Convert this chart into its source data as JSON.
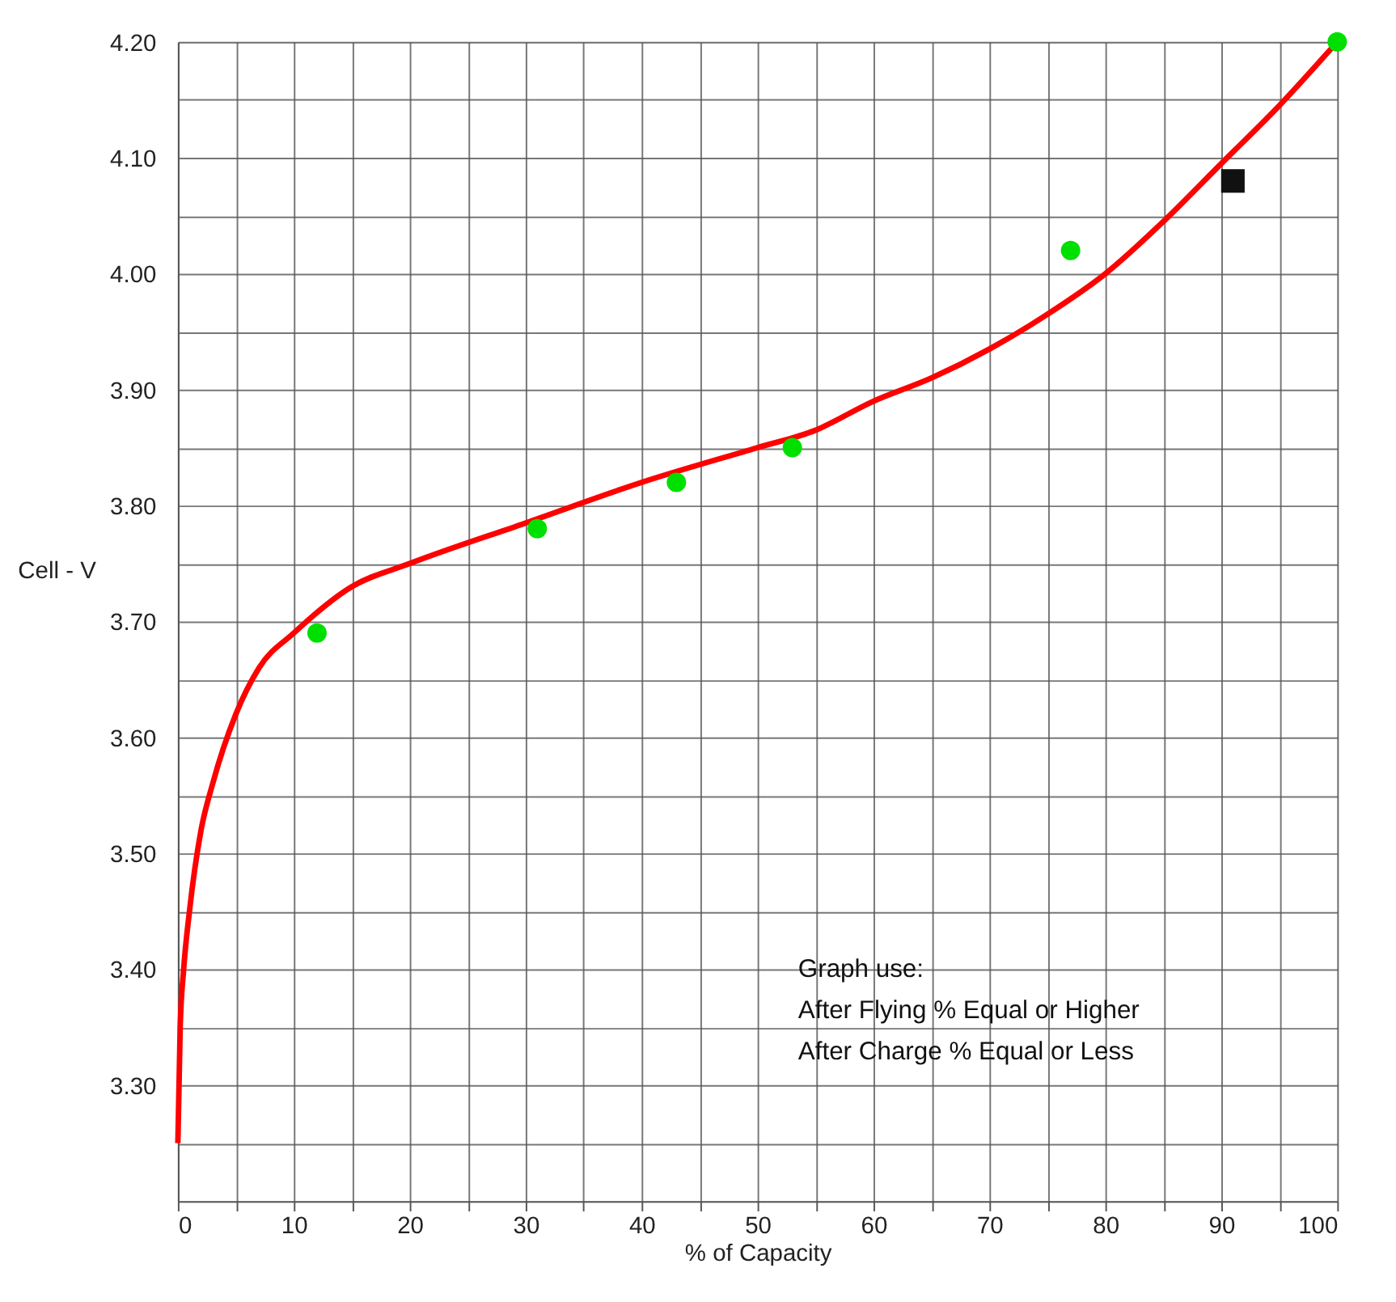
{
  "chart_data": {
    "type": "line",
    "xlabel": "% of Capacity",
    "ylabel": "Cell - V",
    "annotations": [
      "Graph use:",
      "After Flying     %  Equal or Higher",
      "After Charge    %  Equal or Less"
    ],
    "series": [
      {
        "type": "line",
        "color": "#ff0000",
        "marker": "none",
        "x": [
          0,
          0.2,
          0.5,
          1,
          2,
          3,
          5,
          7,
          10,
          15,
          20,
          30,
          40,
          50,
          55,
          60,
          65,
          70,
          75,
          80,
          85,
          90,
          95,
          100
        ],
        "values": [
          3.25,
          3.35,
          3.4,
          3.45,
          3.52,
          3.56,
          3.62,
          3.66,
          3.69,
          3.73,
          3.75,
          3.785,
          3.82,
          3.85,
          3.865,
          3.89,
          3.91,
          3.935,
          3.965,
          4.0,
          4.045,
          4.095,
          4.145,
          4.2
        ]
      },
      {
        "type": "scatter",
        "color": "#00e000",
        "marker": "circle",
        "x": [
          12,
          31,
          43,
          53,
          77,
          100
        ],
        "values": [
          3.69,
          3.78,
          3.82,
          3.85,
          4.02,
          4.2
        ]
      },
      {
        "type": "scatter",
        "color": "#111111",
        "marker": "square",
        "x": [
          91
        ],
        "values": [
          4.08
        ]
      }
    ],
    "xlim": [
      0,
      100
    ],
    "xticks": [
      0,
      {
        "value": 5,
        "label": null
      },
      10,
      {
        "value": 15,
        "label": null
      },
      20,
      {
        "value": 25,
        "label": null
      },
      30,
      {
        "value": 35,
        "label": null
      },
      40,
      {
        "value": 45,
        "label": null
      },
      50,
      {
        "value": 55,
        "label": null
      },
      60,
      {
        "value": 65,
        "label": null
      },
      70,
      {
        "value": 75,
        "label": null
      },
      80,
      {
        "value": 85,
        "label": null
      },
      90,
      {
        "value": 95,
        "label": null
      },
      100
    ],
    "ylim": [
      3.2,
      4.2
    ],
    "yticks": [
      {
        "value": 3.25,
        "label": null
      },
      {
        "value": 3.3,
        "label": "3.30"
      },
      {
        "value": 3.35,
        "label": null
      },
      {
        "value": 3.4,
        "label": "3.40"
      },
      {
        "value": 3.45,
        "label": null
      },
      {
        "value": 3.5,
        "label": "3.50"
      },
      {
        "value": 3.55,
        "label": null
      },
      {
        "value": 3.6,
        "label": "3.60"
      },
      {
        "value": 3.65,
        "label": null
      },
      {
        "value": 3.7,
        "label": "3.70"
      },
      {
        "value": 3.75,
        "label": null
      },
      {
        "value": 3.8,
        "label": "3.80"
      },
      {
        "value": 3.85,
        "label": null
      },
      {
        "value": 3.9,
        "label": "3.90"
      },
      {
        "value": 3.95,
        "label": null
      },
      {
        "value": 4.0,
        "label": "4.00"
      },
      {
        "value": 4.05,
        "label": null
      },
      {
        "value": 4.1,
        "label": "4.10"
      },
      {
        "value": 4.15,
        "label": null
      },
      {
        "value": 4.2,
        "label": "4.20"
      }
    ],
    "grid": true
  }
}
